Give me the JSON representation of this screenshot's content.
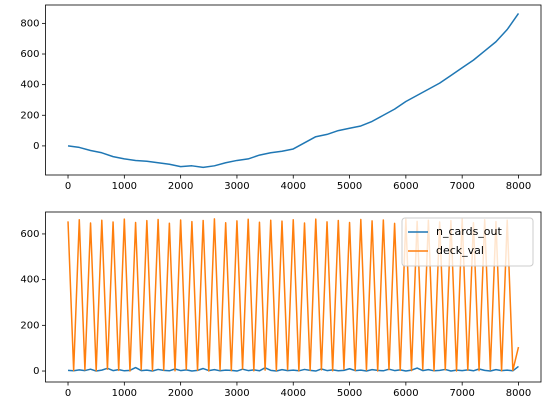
{
  "chart_data": [
    {
      "type": "line",
      "x": [
        0,
        200,
        400,
        600,
        800,
        1000,
        1200,
        1400,
        1600,
        1800,
        2000,
        2200,
        2400,
        2600,
        2800,
        3000,
        3200,
        3400,
        3600,
        3800,
        4000,
        4200,
        4400,
        4600,
        4800,
        5000,
        5200,
        5400,
        5600,
        5800,
        6000,
        6200,
        6400,
        6600,
        6800,
        7000,
        7200,
        7400,
        7600,
        7800,
        8000
      ],
      "series": [
        {
          "color": "#1f77b4",
          "values": [
            0,
            -10,
            -30,
            -45,
            -70,
            -85,
            -95,
            -100,
            -110,
            -120,
            -135,
            -130,
            -140,
            -130,
            -110,
            -95,
            -85,
            -60,
            -45,
            -35,
            -20,
            20,
            60,
            75,
            100,
            115,
            130,
            160,
            200,
            240,
            290,
            330,
            370,
            410,
            460,
            510,
            560,
            620,
            680,
            760,
            865
          ]
        }
      ],
      "xlim": [
        -400,
        8400
      ],
      "ylim": [
        -190,
        920
      ],
      "xticks": [
        0,
        1000,
        2000,
        3000,
        4000,
        5000,
        6000,
        7000,
        8000
      ],
      "yticks": [
        0,
        200,
        400,
        600,
        800
      ]
    },
    {
      "type": "line",
      "x": [
        0,
        100,
        200,
        300,
        400,
        500,
        600,
        700,
        800,
        900,
        1000,
        1100,
        1200,
        1300,
        1400,
        1500,
        1600,
        1700,
        1800,
        1900,
        2000,
        2100,
        2200,
        2300,
        2400,
        2500,
        2600,
        2700,
        2800,
        2900,
        3000,
        3100,
        3200,
        3300,
        3400,
        3500,
        3600,
        3700,
        3800,
        3900,
        4000,
        4100,
        4200,
        4300,
        4400,
        4500,
        4600,
        4700,
        4800,
        4900,
        5000,
        5100,
        5200,
        5300,
        5400,
        5500,
        5600,
        5700,
        5800,
        5900,
        6000,
        6100,
        6200,
        6300,
        6400,
        6500,
        6600,
        6700,
        6800,
        6900,
        7000,
        7100,
        7200,
        7300,
        7400,
        7500,
        7600,
        7700,
        7800,
        7900,
        8000
      ],
      "series": [
        {
          "name": "n_cards_out",
          "color": "#1f77b4",
          "values": [
            3,
            1,
            5,
            2,
            8,
            0,
            4,
            12,
            2,
            6,
            1,
            3,
            15,
            2,
            4,
            0,
            7,
            3,
            1,
            9,
            2,
            5,
            0,
            3,
            11,
            2,
            6,
            1,
            4,
            3,
            0,
            8,
            2,
            5,
            1,
            14,
            3,
            0,
            6,
            2,
            4,
            1,
            7,
            3,
            0,
            9,
            2,
            5,
            1,
            3,
            10,
            2,
            4,
            0,
            6,
            3,
            1,
            8,
            2,
            5,
            0,
            4,
            13,
            2,
            6,
            1,
            3,
            7,
            0,
            4,
            2,
            5,
            1,
            9,
            3,
            0,
            6,
            2,
            4,
            1,
            20
          ]
        },
        {
          "name": "deck_val",
          "color": "#ff7f0e",
          "values": [
            655,
            2,
            662,
            5,
            648,
            1,
            660,
            8,
            652,
            3,
            665,
            0,
            650,
            6,
            658,
            2,
            663,
            4,
            647,
            1,
            661,
            7,
            654,
            3,
            659,
            0,
            666,
            5,
            649,
            2,
            657,
            9,
            664,
            1,
            651,
            4,
            660,
            2,
            656,
            6,
            662,
            0,
            648,
            3,
            665,
            5,
            653,
            1,
            659,
            8,
            650,
            2,
            663,
            4,
            657,
            0,
            661,
            6,
            646,
            3,
            664,
            2,
            655,
            7,
            660,
            1,
            652,
            5,
            658,
            0,
            667,
            4,
            649,
            2,
            662,
            6,
            654,
            1,
            660,
            3,
            105
          ]
        }
      ],
      "xlim": [
        -400,
        8400
      ],
      "ylim": [
        -48,
        696
      ],
      "xticks": [
        0,
        1000,
        2000,
        3000,
        4000,
        5000,
        6000,
        7000,
        8000
      ],
      "yticks": [
        0,
        200,
        400,
        600
      ],
      "legend": "upper right"
    }
  ]
}
